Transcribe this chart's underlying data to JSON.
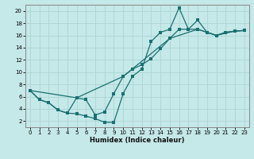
{
  "title": "",
  "xlabel": "Humidex (Indice chaleur)",
  "bg_color": "#c5e8e8",
  "line_color": "#1a7070",
  "grid_color": "#aed4d4",
  "xlim": [
    -0.5,
    23.5
  ],
  "ylim": [
    1.0,
    21.0
  ],
  "xticks": [
    0,
    1,
    2,
    3,
    4,
    5,
    6,
    7,
    8,
    9,
    10,
    11,
    12,
    13,
    14,
    15,
    16,
    17,
    18,
    19,
    20,
    21,
    22,
    23
  ],
  "yticks": [
    2,
    4,
    6,
    8,
    10,
    12,
    14,
    16,
    18,
    20
  ],
  "line1_x": [
    0,
    1,
    2,
    3,
    4,
    5,
    6,
    7,
    8,
    9,
    10,
    11,
    12,
    13,
    14,
    15,
    16,
    17,
    18,
    19,
    20,
    21,
    22,
    23
  ],
  "line1_y": [
    7.0,
    5.5,
    5.0,
    3.8,
    3.3,
    5.8,
    5.5,
    3.0,
    3.5,
    6.5,
    9.3,
    10.5,
    11.2,
    12.2,
    13.8,
    15.5,
    17.0,
    17.0,
    17.0,
    16.5,
    16.0,
    16.5,
    16.7,
    16.8
  ],
  "line2_x": [
    0,
    1,
    2,
    3,
    4,
    5,
    6,
    7,
    8,
    9,
    10,
    11,
    12,
    13,
    14,
    15,
    16,
    17,
    18,
    19,
    20,
    21,
    22,
    23
  ],
  "line2_y": [
    7.0,
    5.5,
    5.0,
    3.8,
    3.3,
    3.2,
    2.8,
    2.4,
    1.8,
    1.8,
    6.5,
    9.3,
    10.5,
    15.0,
    16.5,
    17.0,
    20.5,
    17.0,
    18.5,
    16.5,
    16.0,
    16.5,
    16.7,
    16.8
  ],
  "line3_x": [
    0,
    5,
    10,
    15,
    18,
    20,
    22,
    23
  ],
  "line3_y": [
    7.0,
    5.8,
    9.3,
    15.5,
    17.0,
    16.0,
    16.7,
    16.8
  ]
}
